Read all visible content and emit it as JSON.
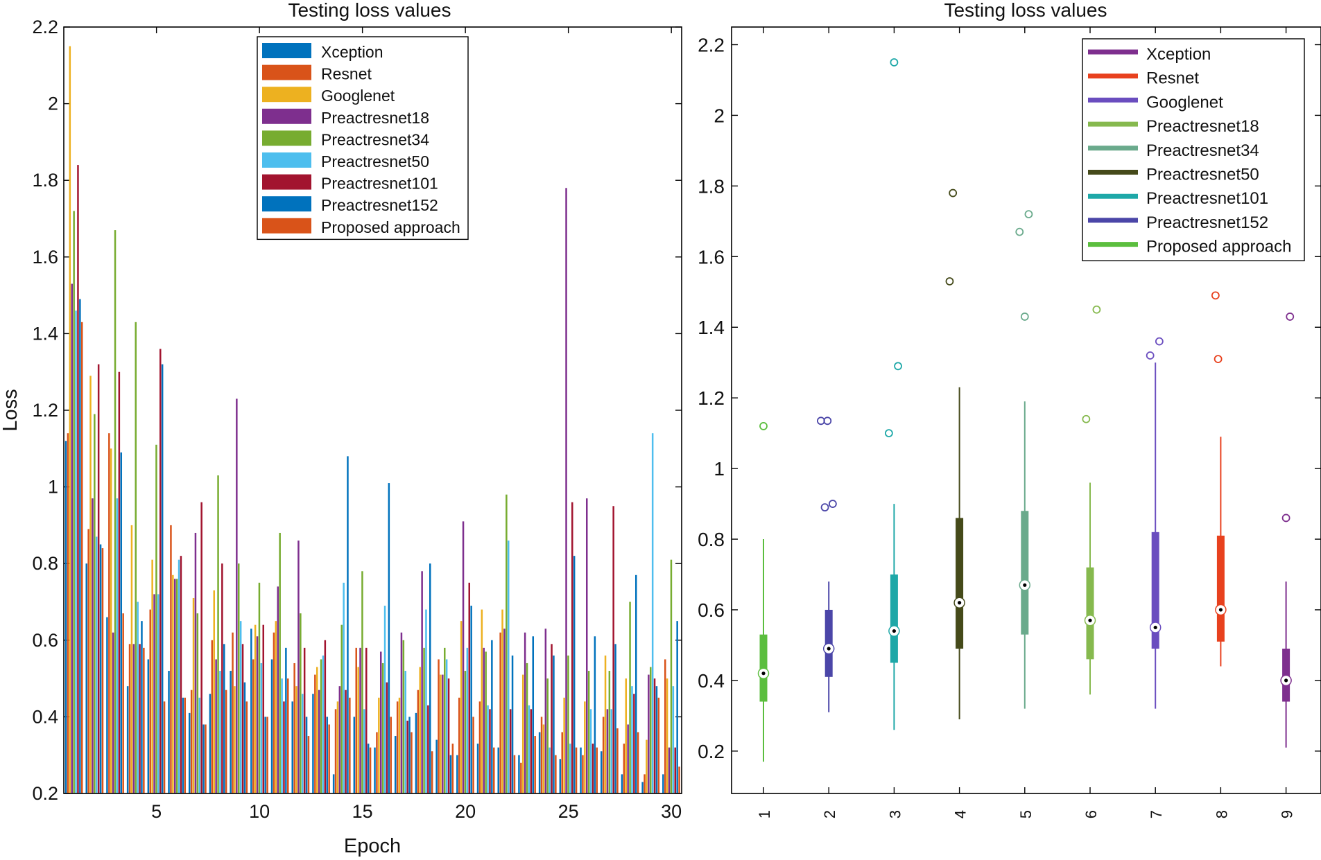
{
  "chart_data": [
    {
      "type": "bar",
      "title": "Testing loss values",
      "xlabel": "Epoch",
      "ylabel": "Loss",
      "xlim": [
        0.5,
        30.5
      ],
      "ylim": [
        0.2,
        2.2
      ],
      "x_ticks": [
        "5",
        "10",
        "15",
        "20",
        "25",
        "30"
      ],
      "x_tick_values": [
        5,
        10,
        15,
        20,
        25,
        30
      ],
      "y_ticks": [
        "0.2",
        "0.4",
        "0.6",
        "0.8",
        "1",
        "1.2",
        "1.4",
        "1.6",
        "1.8",
        "2",
        "2.2"
      ],
      "y_tick_values": [
        0.2,
        0.4,
        0.6,
        0.8,
        1.0,
        1.2,
        1.4,
        1.6,
        1.8,
        2.0,
        2.2
      ],
      "legend_position": "top-center",
      "categories": [
        1,
        2,
        3,
        4,
        5,
        6,
        7,
        8,
        9,
        10,
        11,
        12,
        13,
        14,
        15,
        16,
        17,
        18,
        19,
        20,
        21,
        22,
        23,
        24,
        25,
        26,
        27,
        28,
        29,
        30
      ],
      "series": [
        {
          "name": "Xception",
          "color": "#0072BD",
          "values": [
            1.12,
            0.8,
            0.66,
            0.48,
            0.55,
            0.52,
            0.41,
            0.46,
            0.52,
            0.63,
            0.55,
            0.44,
            0.46,
            0.25,
            0.4,
            0.32,
            0.35,
            0.41,
            0.34,
            0.3,
            0.33,
            0.32,
            0.3,
            0.36,
            0.29,
            0.32,
            0.31,
            0.25,
            0.23,
            0.25
          ]
        },
        {
          "name": "Resnet",
          "color": "#D95319",
          "values": [
            1.14,
            0.89,
            1.14,
            0.59,
            0.68,
            0.9,
            0.47,
            0.6,
            0.62,
            0.55,
            0.62,
            0.54,
            0.51,
            0.42,
            0.58,
            0.36,
            0.44,
            0.47,
            0.55,
            0.45,
            0.44,
            0.62,
            0.28,
            0.4,
            0.36,
            0.3,
            0.4,
            0.33,
            0.25,
            0.55
          ]
        },
        {
          "name": "Googlenet",
          "color": "#EDB120",
          "values": [
            2.15,
            1.29,
            1.1,
            0.9,
            0.81,
            0.77,
            0.71,
            0.73,
            0.48,
            0.64,
            0.65,
            0.48,
            0.53,
            0.44,
            0.53,
            0.45,
            0.45,
            0.53,
            0.51,
            0.65,
            0.68,
            0.68,
            0.51,
            0.38,
            0.45,
            0.44,
            0.56,
            0.5,
            0.34,
            0.5
          ]
        },
        {
          "name": "Preactresnet18",
          "color": "#7E2F8E",
          "values": [
            1.53,
            0.97,
            0.62,
            0.59,
            0.72,
            0.76,
            0.88,
            0.55,
            1.23,
            0.61,
            0.74,
            0.86,
            0.47,
            0.48,
            0.58,
            0.57,
            0.62,
            0.78,
            0.51,
            0.91,
            0.58,
            0.63,
            0.62,
            0.63,
            1.78,
            0.97,
            0.42,
            0.38,
            0.51,
            0.32
          ]
        },
        {
          "name": "Preactresnet34",
          "color": "#77AC30",
          "values": [
            1.72,
            1.19,
            1.67,
            1.43,
            1.11,
            0.76,
            0.67,
            1.03,
            0.8,
            0.75,
            0.88,
            0.67,
            0.55,
            0.64,
            0.78,
            0.54,
            0.6,
            0.58,
            0.58,
            0.52,
            0.57,
            0.98,
            0.54,
            0.5,
            0.56,
            0.52,
            0.52,
            0.7,
            0.53,
            0.81
          ]
        },
        {
          "name": "Preactresnet50",
          "color": "#4DBEEE",
          "values": [
            1.46,
            0.87,
            0.97,
            0.7,
            0.72,
            0.81,
            0.45,
            0.52,
            0.65,
            0.54,
            0.5,
            0.46,
            0.56,
            0.75,
            0.42,
            0.69,
            0.52,
            0.68,
            0.55,
            0.58,
            0.43,
            0.86,
            0.43,
            0.32,
            0.33,
            0.42,
            0.42,
            0.48,
            1.14,
            0.48
          ]
        },
        {
          "name": "Preactresnet101",
          "color": "#A2142F",
          "values": [
            1.84,
            1.32,
            1.3,
            0.59,
            1.36,
            0.82,
            0.96,
            0.8,
            0.59,
            0.64,
            0.44,
            0.58,
            0.6,
            0.47,
            0.58,
            0.49,
            0.39,
            0.43,
            0.5,
            0.75,
            0.42,
            0.42,
            0.42,
            0.59,
            0.96,
            0.33,
            0.95,
            0.46,
            0.5,
            0.32
          ]
        },
        {
          "name": "Preactresnet152",
          "color": "#0072BD",
          "values": [
            1.49,
            0.85,
            1.09,
            0.65,
            1.32,
            0.45,
            0.38,
            0.59,
            0.49,
            0.4,
            0.58,
            0.4,
            0.4,
            1.08,
            0.33,
            1.01,
            0.4,
            0.8,
            0.3,
            0.69,
            0.6,
            0.56,
            0.61,
            0.56,
            0.82,
            0.61,
            0.59,
            0.77,
            0.48,
            0.65
          ]
        },
        {
          "name": "Proposed approach",
          "color": "#D95319",
          "values": [
            1.43,
            0.84,
            0.67,
            0.58,
            0.44,
            0.45,
            0.38,
            0.47,
            0.44,
            0.4,
            0.5,
            0.35,
            0.38,
            0.45,
            0.32,
            0.4,
            0.36,
            0.31,
            0.33,
            0.4,
            0.32,
            0.3,
            0.35,
            0.3,
            0.32,
            0.32,
            0.37,
            0.36,
            0.45,
            0.27
          ]
        }
      ]
    },
    {
      "type": "box",
      "title": "Testing loss values",
      "xlabel": "",
      "ylabel": "",
      "ylim": [
        0.08,
        2.25
      ],
      "y_ticks": [
        "0.2",
        "0.4",
        "0.6",
        "0.8",
        "1",
        "1.2",
        "1.4",
        "1.6",
        "1.8",
        "2",
        "2.2"
      ],
      "y_tick_values": [
        0.2,
        0.4,
        0.6,
        0.8,
        1.0,
        1.2,
        1.4,
        1.6,
        1.8,
        2.0,
        2.2
      ],
      "legend_position": "top-right",
      "legend": [
        {
          "name": "Xception",
          "color": "#7E2F8E"
        },
        {
          "name": "Resnet",
          "color": "#E8411E"
        },
        {
          "name": "Googlenet",
          "color": "#6A4DBF"
        },
        {
          "name": "Preactresnet18",
          "color": "#86B94E"
        },
        {
          "name": "Preactresnet34",
          "color": "#6AAA8C"
        },
        {
          "name": "Preactresnet50",
          "color": "#454A1A"
        },
        {
          "name": "Preactresnet101",
          "color": "#1EA8A8"
        },
        {
          "name": "Preactresnet152",
          "color": "#4B46A8"
        },
        {
          "name": "Proposed approach",
          "color": "#5BBE3E"
        }
      ],
      "boxes": [
        {
          "label": "1",
          "color": "#5BBE3E",
          "whisker_low": 0.17,
          "q1": 0.34,
          "median": 0.42,
          "q3": 0.53,
          "whisker_high": 0.8,
          "outliers": [
            1.12
          ]
        },
        {
          "label": "2",
          "color": "#4B46A8",
          "whisker_low": 0.31,
          "q1": 0.41,
          "median": 0.49,
          "q3": 0.6,
          "whisker_high": 0.68,
          "outliers": [
            0.89,
            0.9,
            1.135,
            1.135
          ],
          "outlier_offsets": [
            -0.06,
            0.06,
            -0.12,
            -0.02
          ]
        },
        {
          "label": "3",
          "color": "#1EA8A8",
          "whisker_low": 0.26,
          "q1": 0.45,
          "median": 0.54,
          "q3": 0.7,
          "whisker_high": 0.9,
          "outliers": [
            1.1,
            1.29,
            2.15
          ],
          "outlier_offsets": [
            -0.08,
            0.06,
            0.0
          ]
        },
        {
          "label": "4",
          "color": "#454A1A",
          "whisker_low": 0.29,
          "q1": 0.49,
          "median": 0.62,
          "q3": 0.86,
          "whisker_high": 1.23,
          "outliers": [
            1.53,
            1.78
          ],
          "outlier_offsets": [
            -0.15,
            -0.1
          ]
        },
        {
          "label": "5",
          "color": "#6AAA8C",
          "whisker_low": 0.32,
          "q1": 0.53,
          "median": 0.67,
          "q3": 0.88,
          "whisker_high": 1.19,
          "outliers": [
            1.43,
            1.67,
            1.72
          ],
          "outlier_offsets": [
            0.0,
            -0.08,
            0.06
          ]
        },
        {
          "label": "6",
          "color": "#86B94E",
          "whisker_low": 0.36,
          "q1": 0.46,
          "median": 0.57,
          "q3": 0.72,
          "whisker_high": 0.96,
          "outliers": [
            1.14,
            1.45
          ],
          "outlier_offsets": [
            -0.06,
            0.1
          ]
        },
        {
          "label": "7",
          "color": "#6A4DBF",
          "whisker_low": 0.32,
          "q1": 0.49,
          "median": 0.55,
          "q3": 0.82,
          "whisker_high": 1.3,
          "outliers": [
            1.32,
            1.36
          ],
          "outlier_offsets": [
            -0.08,
            0.06
          ]
        },
        {
          "label": "8",
          "color": "#E8411E",
          "whisker_low": 0.44,
          "q1": 0.51,
          "median": 0.6,
          "q3": 0.81,
          "whisker_high": 1.09,
          "outliers": [
            1.31,
            1.49
          ],
          "outlier_offsets": [
            -0.04,
            -0.08
          ]
        },
        {
          "label": "9",
          "color": "#7E2F8E",
          "whisker_low": 0.21,
          "q1": 0.34,
          "median": 0.4,
          "q3": 0.49,
          "whisker_high": 0.68,
          "outliers": [
            0.86,
            1.43
          ],
          "outlier_offsets": [
            0.0,
            0.06
          ]
        }
      ]
    }
  ]
}
